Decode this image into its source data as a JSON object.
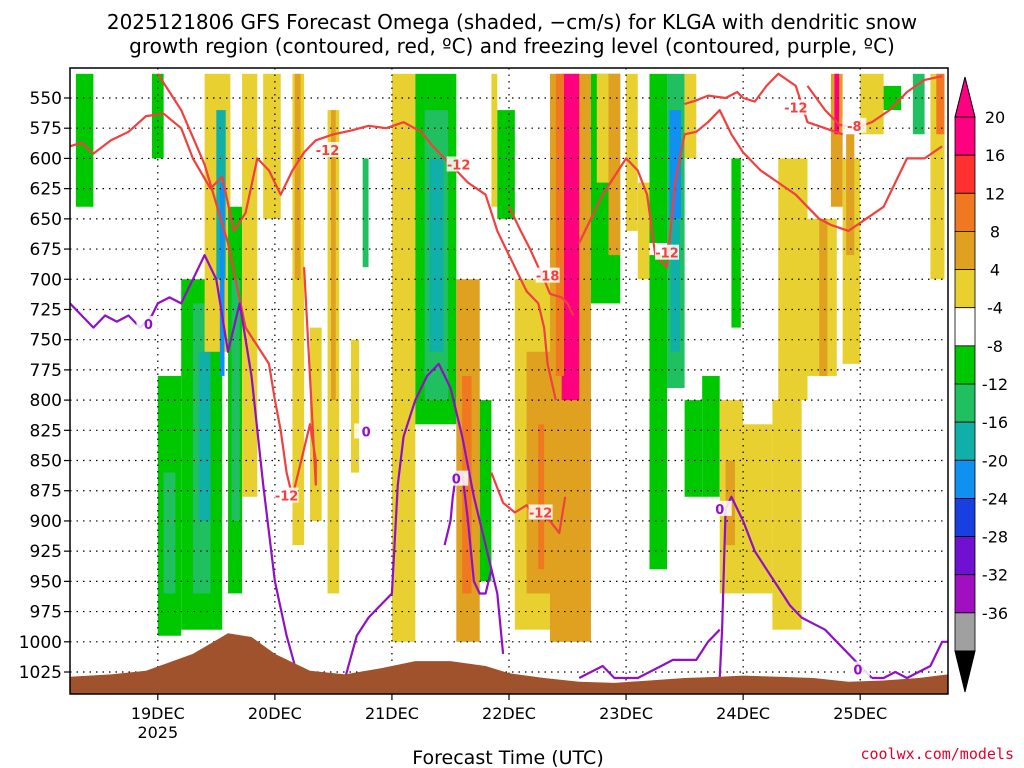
{
  "chart_data": {
    "type": "heatmap",
    "title_line1": "2025121806 GFS Forecast Omega (shaded, −cm/s) for KLGA with dendritic snow",
    "title_line2": "growth region (contoured, red, ºC) and freezing level (contoured, purple, ºC)",
    "xlabel": "Forecast Time (UTC)",
    "credit": "coolwx.com/models",
    "x_range": [
      18.25,
      25.75
    ],
    "x_ticks": [
      {
        "label": "19DEC",
        "sub": "2025",
        "value": 19.0
      },
      {
        "label": "20DEC",
        "sub": "",
        "value": 20.0
      },
      {
        "label": "21DEC",
        "sub": "",
        "value": 21.0
      },
      {
        "label": "22DEC",
        "sub": "",
        "value": 22.0
      },
      {
        "label": "23DEC",
        "sub": "",
        "value": 23.0
      },
      {
        "label": "24DEC",
        "sub": "",
        "value": 24.0
      },
      {
        "label": "25DEC",
        "sub": "",
        "value": 25.0
      }
    ],
    "y_label_top": 550,
    "y_range": [
      530,
      1040
    ],
    "y_ticks": [
      550,
      575,
      600,
      625,
      650,
      675,
      700,
      725,
      750,
      775,
      800,
      825,
      850,
      875,
      900,
      925,
      950,
      975,
      1000,
      1025
    ],
    "colorbar": {
      "labels": [
        "20",
        "16",
        "12",
        "8",
        "4",
        "-4",
        "-8",
        "-12",
        "-16",
        "-20",
        "-24",
        "-28",
        "-32",
        "-36"
      ],
      "bins": [
        {
          "color": "#ff0080"
        },
        {
          "color": "#ff3030"
        },
        {
          "color": "#f07820"
        },
        {
          "color": "#e0a020"
        },
        {
          "color": "#e8d030"
        },
        {
          "color": "#ffffff"
        },
        {
          "color": "#00c800"
        },
        {
          "color": "#20c060"
        },
        {
          "color": "#10b0a8"
        },
        {
          "color": "#1090f0"
        },
        {
          "color": "#1840e0"
        },
        {
          "color": "#7010d0"
        },
        {
          "color": "#a010c0"
        },
        {
          "color": "#a0a0a0"
        }
      ],
      "over_color": "#ff0080",
      "under_color": "#000000"
    },
    "omega_areas": [
      {
        "x0": 18.3,
        "x1": 18.45,
        "p0": 530,
        "p1": 640,
        "color": "#00c800"
      },
      {
        "x0": 18.95,
        "x1": 19.05,
        "p0": 530,
        "p1": 600,
        "color": "#00c800"
      },
      {
        "x0": 19.0,
        "x1": 19.2,
        "p0": 780,
        "p1": 995,
        "color": "#00c800"
      },
      {
        "x0": 19.05,
        "x1": 19.15,
        "p0": 860,
        "p1": 960,
        "color": "#20c060"
      },
      {
        "x0": 19.2,
        "x1": 19.55,
        "p0": 700,
        "p1": 990,
        "color": "#00c800"
      },
      {
        "x0": 19.3,
        "x1": 19.45,
        "p0": 720,
        "p1": 960,
        "color": "#20c060"
      },
      {
        "x0": 19.35,
        "x1": 19.45,
        "p0": 760,
        "p1": 900,
        "color": "#10b0a8"
      },
      {
        "x0": 19.4,
        "x1": 19.62,
        "p0": 530,
        "p1": 760,
        "color": "#e8d030"
      },
      {
        "x0": 19.5,
        "x1": 19.58,
        "p0": 560,
        "p1": 700,
        "color": "#10b0a8"
      },
      {
        "x0": 19.53,
        "x1": 19.57,
        "p0": 620,
        "p1": 780,
        "color": "#1090f0"
      },
      {
        "x0": 19.6,
        "x1": 19.72,
        "p0": 640,
        "p1": 960,
        "color": "#00c800"
      },
      {
        "x0": 19.63,
        "x1": 19.7,
        "p0": 700,
        "p1": 900,
        "color": "#20c060"
      },
      {
        "x0": 19.72,
        "x1": 19.85,
        "p0": 530,
        "p1": 880,
        "color": "#e8d030"
      },
      {
        "x0": 19.9,
        "x1": 20.05,
        "p0": 530,
        "p1": 650,
        "color": "#e8d030"
      },
      {
        "x0": 20.15,
        "x1": 20.25,
        "p0": 530,
        "p1": 920,
        "color": "#e8d030"
      },
      {
        "x0": 20.17,
        "x1": 20.22,
        "p0": 530,
        "p1": 700,
        "color": "#e0a020"
      },
      {
        "x0": 20.3,
        "x1": 20.4,
        "p0": 740,
        "p1": 900,
        "color": "#e8d030"
      },
      {
        "x0": 20.45,
        "x1": 20.55,
        "p0": 560,
        "p1": 960,
        "color": "#e8d030"
      },
      {
        "x0": 20.48,
        "x1": 20.52,
        "p0": 560,
        "p1": 800,
        "color": "#e0a020"
      },
      {
        "x0": 20.65,
        "x1": 20.72,
        "p0": 750,
        "p1": 860,
        "color": "#e8d030"
      },
      {
        "x0": 20.75,
        "x1": 20.8,
        "p0": 600,
        "p1": 690,
        "color": "#20c060"
      },
      {
        "x0": 21.0,
        "x1": 21.2,
        "p0": 530,
        "p1": 1000,
        "color": "#e8d030"
      },
      {
        "x0": 21.2,
        "x1": 21.55,
        "p0": 530,
        "p1": 820,
        "color": "#00c800"
      },
      {
        "x0": 21.28,
        "x1": 21.48,
        "p0": 560,
        "p1": 800,
        "color": "#20c060"
      },
      {
        "x0": 21.32,
        "x1": 21.44,
        "p0": 600,
        "p1": 760,
        "color": "#10b0a8"
      },
      {
        "x0": 21.55,
        "x1": 21.75,
        "p0": 700,
        "p1": 1000,
        "color": "#e0a020"
      },
      {
        "x0": 21.6,
        "x1": 21.68,
        "p0": 780,
        "p1": 960,
        "color": "#f07820"
      },
      {
        "x0": 21.75,
        "x1": 21.85,
        "p0": 800,
        "p1": 950,
        "color": "#00c800"
      },
      {
        "x0": 21.85,
        "x1": 21.9,
        "p0": 530,
        "p1": 640,
        "color": "#e8d030"
      },
      {
        "x0": 21.9,
        "x1": 22.05,
        "p0": 560,
        "p1": 650,
        "color": "#00c800"
      },
      {
        "x0": 22.05,
        "x1": 22.45,
        "p0": 700,
        "p1": 990,
        "color": "#e8d030"
      },
      {
        "x0": 22.15,
        "x1": 22.35,
        "p0": 760,
        "p1": 960,
        "color": "#e0a020"
      },
      {
        "x0": 22.25,
        "x1": 22.3,
        "p0": 820,
        "p1": 940,
        "color": "#f07820"
      },
      {
        "x0": 22.35,
        "x1": 22.7,
        "p0": 530,
        "p1": 1000,
        "color": "#e0a020"
      },
      {
        "x0": 22.45,
        "x1": 22.6,
        "p0": 530,
        "p1": 800,
        "color": "#ff0080"
      },
      {
        "x0": 22.4,
        "x1": 22.47,
        "p0": 530,
        "p1": 780,
        "color": "#f07820"
      },
      {
        "x0": 22.7,
        "x1": 22.95,
        "p0": 530,
        "p1": 720,
        "color": "#00c800"
      },
      {
        "x0": 22.75,
        "x1": 22.85,
        "p0": 530,
        "p1": 620,
        "color": "#e8d030"
      },
      {
        "x0": 22.85,
        "x1": 22.95,
        "p0": 530,
        "p1": 680,
        "color": "#e0a020"
      },
      {
        "x0": 23.0,
        "x1": 23.1,
        "p0": 530,
        "p1": 660,
        "color": "#e8d030"
      },
      {
        "x0": 23.1,
        "x1": 23.2,
        "p0": 620,
        "p1": 700,
        "color": "#e8d030"
      },
      {
        "x0": 23.2,
        "x1": 23.35,
        "p0": 530,
        "p1": 670,
        "color": "#00c800"
      },
      {
        "x0": 23.2,
        "x1": 23.35,
        "p0": 680,
        "p1": 940,
        "color": "#00c800"
      },
      {
        "x0": 23.35,
        "x1": 23.5,
        "p0": 530,
        "p1": 790,
        "color": "#20c060"
      },
      {
        "x0": 23.37,
        "x1": 23.47,
        "p0": 560,
        "p1": 650,
        "color": "#1090f0"
      },
      {
        "x0": 23.38,
        "x1": 23.46,
        "p0": 650,
        "p1": 760,
        "color": "#10b0a8"
      },
      {
        "x0": 23.5,
        "x1": 23.6,
        "p0": 530,
        "p1": 600,
        "color": "#e8d030"
      },
      {
        "x0": 23.5,
        "x1": 23.65,
        "p0": 800,
        "p1": 880,
        "color": "#00c800"
      },
      {
        "x0": 23.65,
        "x1": 23.8,
        "p0": 780,
        "p1": 880,
        "color": "#00c800"
      },
      {
        "x0": 23.8,
        "x1": 24.0,
        "p0": 800,
        "p1": 960,
        "color": "#e8d030"
      },
      {
        "x0": 23.85,
        "x1": 23.93,
        "p0": 850,
        "p1": 920,
        "color": "#e0a020"
      },
      {
        "x0": 23.9,
        "x1": 23.98,
        "p0": 600,
        "p1": 740,
        "color": "#00c800"
      },
      {
        "x0": 24.0,
        "x1": 24.25,
        "p0": 820,
        "p1": 960,
        "color": "#e8d030"
      },
      {
        "x0": 24.3,
        "x1": 24.55,
        "p0": 600,
        "p1": 800,
        "color": "#e8d030"
      },
      {
        "x0": 24.25,
        "x1": 24.5,
        "p0": 800,
        "p1": 990,
        "color": "#e8d030"
      },
      {
        "x0": 24.55,
        "x1": 24.8,
        "p0": 650,
        "p1": 780,
        "color": "#e8d030"
      },
      {
        "x0": 24.65,
        "x1": 24.72,
        "p0": 650,
        "p1": 780,
        "color": "#e0a020"
      },
      {
        "x0": 24.75,
        "x1": 24.85,
        "p0": 530,
        "p1": 640,
        "color": "#e0a020"
      },
      {
        "x0": 24.78,
        "x1": 24.82,
        "p0": 530,
        "p1": 580,
        "color": "#ff0080"
      },
      {
        "x0": 24.85,
        "x1": 25.0,
        "p0": 600,
        "p1": 770,
        "color": "#e8d030"
      },
      {
        "x0": 24.88,
        "x1": 24.95,
        "p0": 580,
        "p1": 680,
        "color": "#e0a020"
      },
      {
        "x0": 25.0,
        "x1": 25.2,
        "p0": 530,
        "p1": 580,
        "color": "#e8d030"
      },
      {
        "x0": 25.2,
        "x1": 25.35,
        "p0": 540,
        "p1": 560,
        "color": "#00c800"
      },
      {
        "x0": 25.45,
        "x1": 25.55,
        "p0": 530,
        "p1": 580,
        "color": "#20c060"
      },
      {
        "x0": 25.6,
        "x1": 25.72,
        "p0": 530,
        "p1": 700,
        "color": "#e8d030"
      },
      {
        "x0": 25.65,
        "x1": 25.72,
        "p0": 530,
        "p1": 580,
        "color": "#f07820"
      }
    ],
    "terrain": {
      "color": "#a0522d",
      "x": [
        18.25,
        18.6,
        18.9,
        19.3,
        19.6,
        19.8,
        20.0,
        20.3,
        20.6,
        20.9,
        21.2,
        21.5,
        21.8,
        22.0,
        22.3,
        22.6,
        22.9,
        23.2,
        23.5,
        23.8,
        24.0,
        24.3,
        24.6,
        24.9,
        25.2,
        25.5,
        25.75
      ],
      "p": [
        1029,
        1027,
        1024,
        1010,
        993,
        996,
        1010,
        1024,
        1027,
        1022,
        1016,
        1016,
        1020,
        1026,
        1030,
        1033,
        1034,
        1032,
        1030,
        1029,
        1028,
        1029,
        1030,
        1033,
        1032,
        1030,
        1027
      ]
    },
    "dgz_contours": [
      {
        "label": "-12",
        "label_x": 20.45,
        "label_p": 593,
        "x": [
          18.25,
          18.35,
          18.45,
          18.6,
          18.75,
          18.9,
          19.05,
          19.2,
          19.3,
          19.45,
          19.55,
          19.65,
          19.75,
          19.85,
          19.95,
          20.05,
          20.15,
          20.25,
          20.35,
          20.5,
          20.65,
          20.8,
          20.95,
          21.1,
          21.25,
          21.35
        ],
        "p": [
          590,
          587,
          596,
          585,
          578,
          565,
          563,
          575,
          600,
          625,
          615,
          660,
          645,
          600,
          610,
          630,
          610,
          595,
          585,
          580,
          577,
          573,
          575,
          570,
          578,
          590
        ]
      },
      {
        "label": "-12",
        "label_x": 20.1,
        "label_p": 879,
        "x": [
          19.0,
          19.2,
          19.4,
          19.6,
          19.75,
          19.95,
          20.0,
          20.05,
          20.1,
          20.15,
          20.2,
          20.3,
          20.35,
          20.35,
          20.25
        ],
        "p": [
          530,
          560,
          605,
          670,
          740,
          770,
          800,
          825,
          860,
          880,
          860,
          820,
          850,
          870,
          690
        ]
      },
      {
        "label": "-12",
        "label_x": 21.57,
        "label_p": 605,
        "x": [
          21.35,
          21.45,
          21.55,
          21.65,
          21.8,
          21.9,
          21.95,
          22.05,
          22.15,
          22.25,
          22.3,
          22.33,
          22.4
        ],
        "p": [
          590,
          600,
          610,
          620,
          630,
          660,
          670,
          690,
          710,
          720,
          740,
          770,
          800
        ]
      },
      {
        "label": "-18",
        "label_x": 22.33,
        "label_p": 697,
        "x": [
          22.0,
          22.1,
          22.18,
          22.25,
          22.3,
          22.35,
          22.45,
          22.5,
          22.55
        ],
        "p": [
          640,
          660,
          675,
          690,
          700,
          712,
          715,
          720,
          730
        ]
      },
      {
        "label": "-12",
        "label_x": 22.27,
        "label_p": 893,
        "x": [
          21.85,
          21.95,
          22.05,
          22.15,
          22.2,
          22.35,
          22.43,
          22.48
        ],
        "p": [
          860,
          885,
          893,
          887,
          893,
          900,
          910,
          880
        ]
      },
      {
        "label": "-12",
        "label_x": 23.35,
        "label_p": 678,
        "x": [
          22.6,
          22.7,
          22.8,
          22.9,
          23.0,
          23.1,
          23.18,
          23.25,
          23.35,
          23.42,
          23.5,
          23.6,
          23.7,
          23.8,
          23.9,
          24.0,
          24.15,
          24.3,
          24.45,
          24.55,
          24.65,
          24.75,
          24.9,
          25.05,
          25.2,
          25.4,
          25.55,
          25.7
        ],
        "p": [
          670,
          650,
          630,
          615,
          600,
          610,
          630,
          680,
          690,
          620,
          580,
          578,
          570,
          560,
          580,
          595,
          610,
          620,
          630,
          640,
          650,
          655,
          660,
          650,
          640,
          600,
          600,
          590
        ]
      },
      {
        "label": "-12",
        "label_x": 24.45,
        "label_p": 558,
        "x": [
          23.5,
          23.6,
          23.7,
          23.85,
          23.95,
          24.0,
          24.1,
          24.2,
          24.3,
          24.45,
          24.55,
          24.7,
          24.85
        ],
        "p": [
          555,
          552,
          548,
          550,
          545,
          550,
          553,
          540,
          530,
          540,
          570,
          575,
          580
        ]
      },
      {
        "label": "-8",
        "label_x": 24.95,
        "label_p": 573,
        "x": [
          24.55,
          24.7,
          24.82,
          24.95,
          25.1,
          25.25,
          25.4,
          25.55,
          25.7
        ],
        "p": [
          540,
          560,
          572,
          575,
          570,
          560,
          545,
          535,
          532
        ]
      }
    ],
    "freezing_contours": [
      {
        "label": "0",
        "label_x": 18.92,
        "label_p": 737,
        "x": [
          18.25,
          18.35,
          18.45,
          18.55,
          18.65,
          18.75,
          18.85,
          18.95,
          19.0,
          19.1,
          19.2,
          19.3,
          19.4,
          19.5,
          19.6,
          19.7,
          19.8,
          19.9,
          20.0,
          20.1,
          20.2
        ],
        "p": [
          720,
          730,
          740,
          730,
          735,
          730,
          740,
          730,
          720,
          715,
          720,
          700,
          680,
          700,
          760,
          720,
          780,
          870,
          950,
          995,
          1030
        ]
      },
      {
        "label": "0",
        "label_x": 20.78,
        "label_p": 826,
        "x": [
          20.6,
          20.7,
          20.8,
          20.9,
          21.0,
          21.05,
          21.1,
          21.2,
          21.3,
          21.4,
          21.5,
          21.6,
          21.7,
          21.8,
          21.9,
          21.95
        ],
        "p": [
          1030,
          995,
          980,
          970,
          960,
          870,
          830,
          800,
          780,
          770,
          790,
          830,
          880,
          920,
          960,
          1010
        ]
      },
      {
        "label": "0",
        "label_x": 21.55,
        "label_p": 865,
        "x": [
          21.45,
          21.5,
          21.52,
          21.55,
          21.6,
          21.65,
          21.7,
          21.75,
          21.8,
          21.85
        ],
        "p": [
          920,
          900,
          880,
          860,
          860,
          900,
          950,
          960,
          960,
          940
        ]
      },
      {
        "label": "0",
        "label_x": 23.8,
        "label_p": 890,
        "x": [
          23.8,
          23.82,
          23.85,
          23.9,
          24.0,
          24.1,
          24.2,
          24.3,
          24.4,
          24.5,
          24.6,
          24.7,
          24.8,
          24.9,
          25.0,
          25.1
        ],
        "p": [
          1030,
          990,
          890,
          880,
          900,
          925,
          940,
          955,
          970,
          980,
          985,
          990,
          1000,
          1010,
          1020,
          1030
        ]
      },
      {
        "label": "",
        "label_x": 0,
        "label_p": 0,
        "x": [
          22.6,
          22.7,
          22.8,
          22.9,
          23.0,
          23.1,
          23.2,
          23.3,
          23.4,
          23.5,
          23.6,
          23.7,
          23.8
        ],
        "p": [
          1030,
          1025,
          1020,
          1030,
          1030,
          1030,
          1025,
          1020,
          1015,
          1015,
          1015,
          1000,
          990
        ]
      },
      {
        "label": "0",
        "label_x": 24.98,
        "label_p": 1023,
        "x": [
          25.1,
          25.2,
          25.3,
          25.4,
          25.5,
          25.6,
          25.7,
          25.75
        ],
        "p": [
          1030,
          1030,
          1025,
          1030,
          1025,
          1020,
          1000,
          1000
        ]
      }
    ]
  }
}
